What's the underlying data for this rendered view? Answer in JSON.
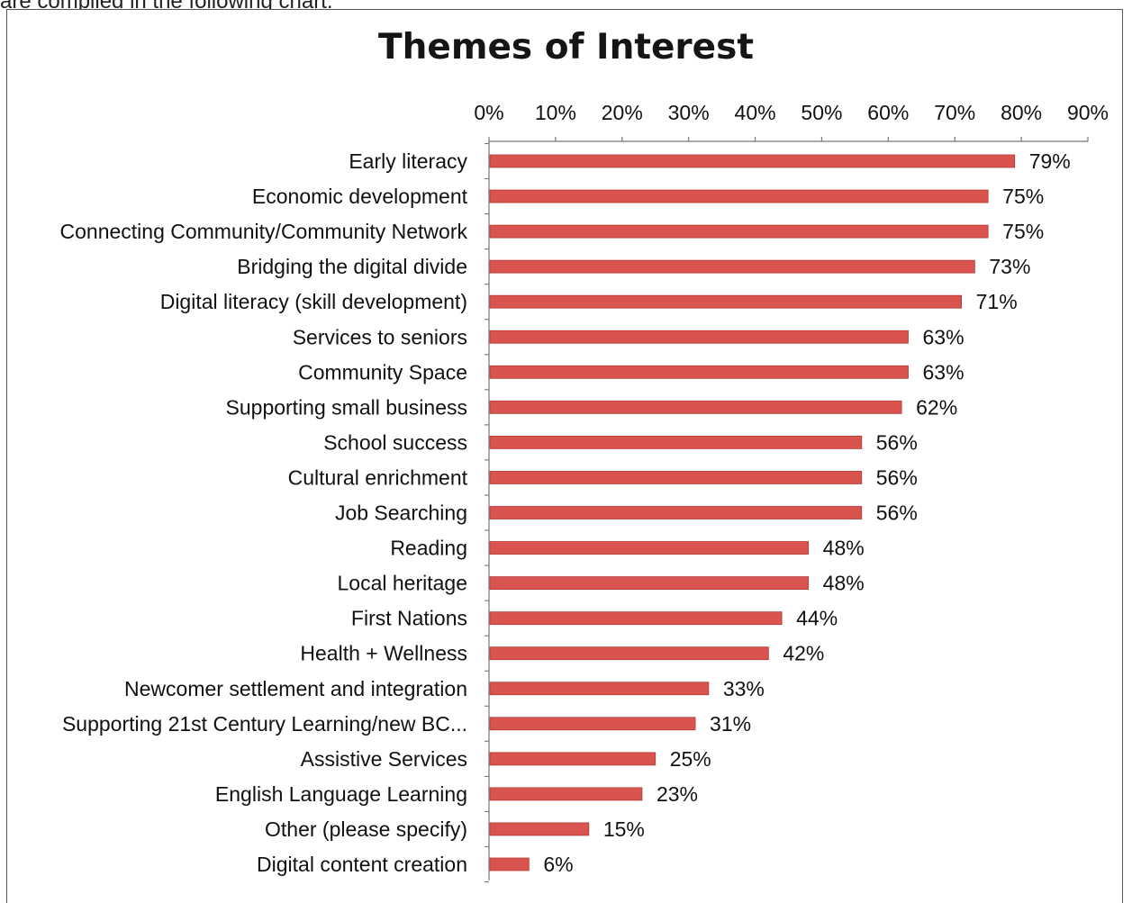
{
  "page": {
    "top_text_fragment": "are compiled in the following chart."
  },
  "chart_data": {
    "type": "bar",
    "orientation": "horizontal",
    "title": "Themes of Interest",
    "xlabel": "",
    "ylabel": "",
    "xlim": [
      0,
      90
    ],
    "x_ticks": [
      "0%",
      "10%",
      "20%",
      "30%",
      "40%",
      "50%",
      "60%",
      "70%",
      "80%",
      "90%"
    ],
    "x_axis_position": "top",
    "grid": false,
    "legend": "none",
    "bar_color": "#d9534f",
    "bar_edge_color": "#b23a36",
    "categories": [
      "Early literacy",
      "Economic development",
      "Connecting Community/Community Network",
      "Bridging the digital divide",
      "Digital literacy (skill development)",
      "Services to seniors",
      "Community Space",
      "Supporting small business",
      "School success",
      "Cultural enrichment",
      "Job Searching",
      "Reading",
      "Local heritage",
      "First Nations",
      "Health + Wellness",
      "Newcomer settlement and integration",
      "Supporting 21st Century Learning/new BC...",
      "Assistive Services",
      "English Language Learning",
      "Other (please specify)",
      "Digital content creation"
    ],
    "values": [
      79,
      75,
      75,
      73,
      71,
      63,
      63,
      62,
      56,
      56,
      56,
      48,
      48,
      44,
      42,
      33,
      31,
      25,
      23,
      15,
      6
    ],
    "data_labels": [
      "79%",
      "75%",
      "75%",
      "73%",
      "71%",
      "63%",
      "63%",
      "62%",
      "56%",
      "56%",
      "56%",
      "48%",
      "48%",
      "44%",
      "42%",
      "33%",
      "31%",
      "25%",
      "23%",
      "15%",
      "6%"
    ]
  }
}
